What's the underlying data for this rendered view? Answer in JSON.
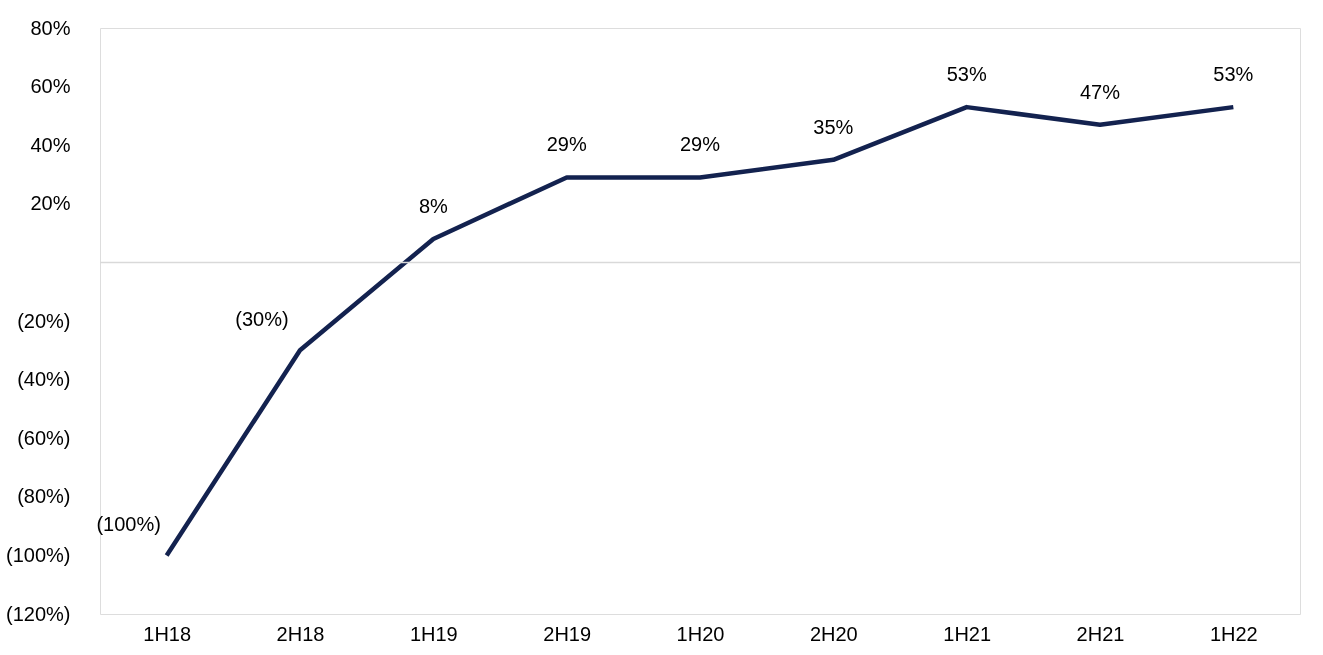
{
  "chart_data": {
    "type": "line",
    "categories": [
      "1H18",
      "2H18",
      "1H19",
      "2H19",
      "1H20",
      "2H20",
      "1H21",
      "2H21",
      "1H22"
    ],
    "series": [
      {
        "color": "#13224f",
        "values": [
          -100,
          -30,
          8,
          29,
          29,
          35,
          53,
          47,
          53
        ],
        "value_labels": [
          "(100%)",
          "(30%)",
          "8%",
          "29%",
          "29%",
          "35%",
          "53%",
          "47%",
          "53%"
        ]
      }
    ],
    "ylim": [
      -120,
      80
    ],
    "yticks": [
      {
        "value": -120,
        "label": "(120%)"
      },
      {
        "value": -100,
        "label": "(100%)"
      },
      {
        "value": -80,
        "label": "(80%)"
      },
      {
        "value": -60,
        "label": "(60%)"
      },
      {
        "value": -40,
        "label": "(40%)"
      },
      {
        "value": -20,
        "label": "(20%)"
      },
      {
        "value": 0,
        "label": null
      },
      {
        "value": 20,
        "label": "20%"
      },
      {
        "value": 40,
        "label": "40%"
      },
      {
        "value": 60,
        "label": "60%"
      },
      {
        "value": 80,
        "label": "80%"
      }
    ],
    "ref_lines": [
      {
        "axis": "y",
        "value": 0,
        "color": "#d9d9d9"
      }
    ],
    "grid": false,
    "marker": "none",
    "line_style": "solid"
  }
}
